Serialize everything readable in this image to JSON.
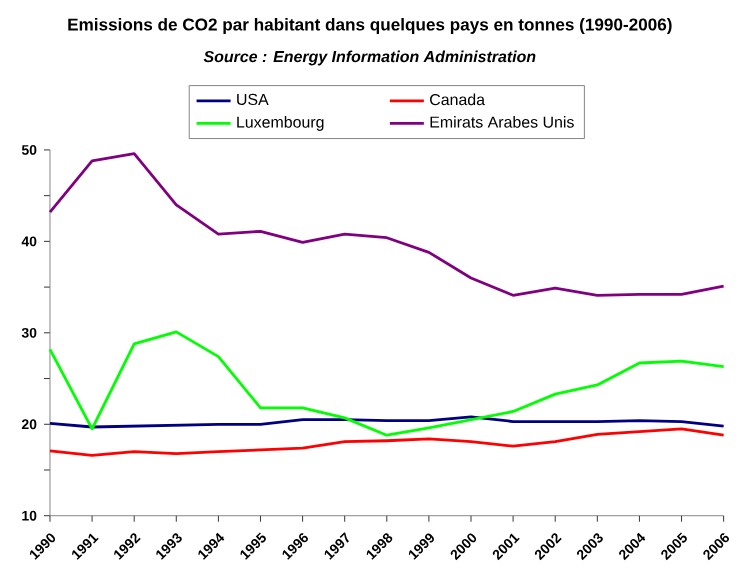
{
  "chart_data": {
    "type": "line",
    "title": "Emissions de CO2 par habitant dans quelques pays en tonnes (1990-2006)",
    "subtitle": "Source : Energy Information Administration",
    "categories": [
      "1990",
      "1991",
      "1992",
      "1993",
      "1994",
      "1995",
      "1996",
      "1997",
      "1998",
      "1999",
      "2000",
      "2001",
      "2002",
      "2003",
      "2004",
      "2005",
      "2006"
    ],
    "series": [
      {
        "name": "USA",
        "color": "#000080",
        "values": [
          20.1,
          19.7,
          19.8,
          19.9,
          20.0,
          20.0,
          20.5,
          20.5,
          20.4,
          20.4,
          20.8,
          20.3,
          20.3,
          20.3,
          20.4,
          20.3,
          19.8
        ]
      },
      {
        "name": "Canada",
        "color": "#ff0000",
        "values": [
          17.1,
          16.6,
          17.0,
          16.8,
          17.0,
          17.2,
          17.4,
          18.1,
          18.2,
          18.4,
          18.1,
          17.6,
          18.1,
          18.9,
          19.2,
          19.5,
          18.8
        ]
      },
      {
        "name": "Luxembourg",
        "color": "#00ff00",
        "values": [
          28.2,
          19.5,
          28.8,
          30.1,
          27.4,
          21.8,
          21.8,
          20.7,
          18.8,
          19.6,
          20.5,
          21.4,
          23.3,
          24.3,
          26.7,
          26.9,
          26.3
        ]
      },
      {
        "name": "Emirats Arabes Unis",
        "color": "#800080",
        "values": [
          43.2,
          48.8,
          49.6,
          44.0,
          40.8,
          41.1,
          39.9,
          40.8,
          40.4,
          38.8,
          36.0,
          34.1,
          34.9,
          34.1,
          34.2,
          34.2,
          35.1
        ]
      }
    ],
    "ylim": [
      10,
      50
    ],
    "yticks": [
      10,
      {
        "value": 15,
        "label": null
      },
      20,
      {
        "value": 25,
        "label": null
      },
      30,
      {
        "value": 35,
        "label": null
      },
      40,
      {
        "value": 45,
        "label": null
      },
      50
    ],
    "legend": "top"
  }
}
